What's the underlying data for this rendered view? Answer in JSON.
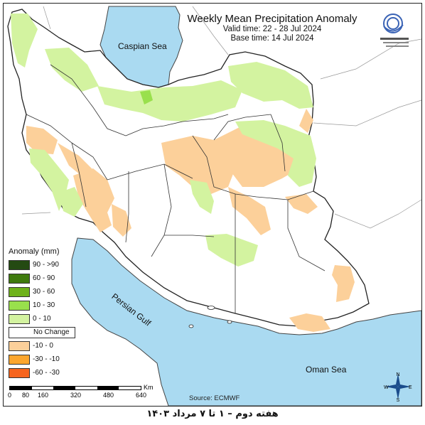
{
  "title": "Weekly Mean Precipitation Anomaly",
  "valid_time": "Valid time: 22 - 28 Jul 2024",
  "base_time": "Base time: 14 Jul 2024",
  "seas": {
    "caspian": "Caspian Sea",
    "persian_gulf": "Persian Gulf",
    "oman": "Oman Sea"
  },
  "legend": {
    "title": "Anomaly (mm)",
    "items": [
      {
        "label": "90 - >90",
        "color": "#244a12"
      },
      {
        "label": "60 - 90",
        "color": "#3f7a0e"
      },
      {
        "label": "30 - 60",
        "color": "#6eb21a"
      },
      {
        "label": "10 - 30",
        "color": "#99e04c"
      },
      {
        "label": "0 - 10",
        "color": "#d3f3a0"
      },
      {
        "label": "No Change",
        "color": "#ffffff"
      },
      {
        "label": "-10 - 0",
        "color": "#fcd09a"
      },
      {
        "label": "-30 - -10",
        "color": "#fca62e"
      },
      {
        "label": "-60 - -30",
        "color": "#f6641e"
      }
    ]
  },
  "scale": {
    "unit": "Km",
    "ticks": [
      "0",
      "80",
      "160",
      "320",
      "480",
      "640"
    ]
  },
  "source": "Source: ECMWF",
  "compass": {
    "n": "N",
    "s": "S",
    "e": "E",
    "w": "W"
  },
  "caption": "هفته دوم – ۱ تا ۷ مرداد ۱۴۰۳",
  "colors": {
    "sea": "#aadaf1",
    "land_outside": "#ffffff",
    "border": "#222222"
  }
}
